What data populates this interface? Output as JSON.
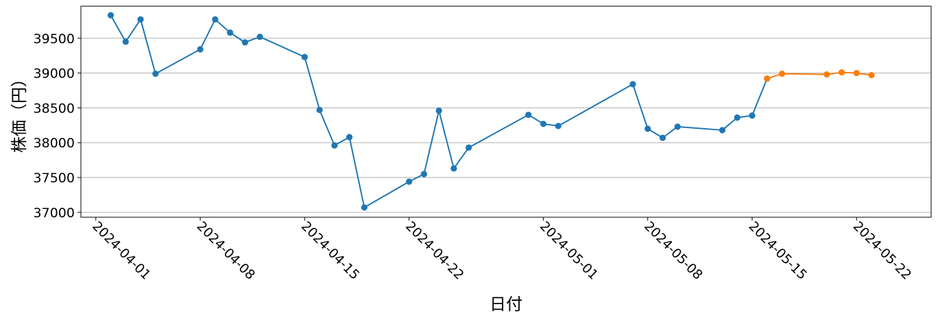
{
  "chart_data": {
    "type": "line",
    "xlabel": "日付",
    "ylabel": "株価（円）",
    "x_axis_type": "date",
    "xlim": [
      "2024-03-31",
      "2024-05-27"
    ],
    "ylim": [
      36930,
      39960
    ],
    "grid": "horizontal",
    "yticks": [
      37000,
      37500,
      38000,
      38500,
      39000,
      39500
    ],
    "xticks": [
      "2024-04-01",
      "2024-04-08",
      "2024-04-15",
      "2024-04-22",
      "2024-05-01",
      "2024-05-08",
      "2024-05-15",
      "2024-05-22"
    ],
    "series": [
      {
        "color": "#1f77b4",
        "points": [
          {
            "x": "2024-04-02",
            "y": 39830
          },
          {
            "x": "2024-04-03",
            "y": 39450
          },
          {
            "x": "2024-04-04",
            "y": 39770
          },
          {
            "x": "2024-04-05",
            "y": 38990
          },
          {
            "x": "2024-04-08",
            "y": 39340
          },
          {
            "x": "2024-04-09",
            "y": 39770
          },
          {
            "x": "2024-04-10",
            "y": 39580
          },
          {
            "x": "2024-04-11",
            "y": 39440
          },
          {
            "x": "2024-04-12",
            "y": 39520
          },
          {
            "x": "2024-04-15",
            "y": 39230
          },
          {
            "x": "2024-04-16",
            "y": 38470
          },
          {
            "x": "2024-04-17",
            "y": 37960
          },
          {
            "x": "2024-04-18",
            "y": 38080
          },
          {
            "x": "2024-04-19",
            "y": 37070
          },
          {
            "x": "2024-04-22",
            "y": 37440
          },
          {
            "x": "2024-04-23",
            "y": 37550
          },
          {
            "x": "2024-04-24",
            "y": 38460
          },
          {
            "x": "2024-04-25",
            "y": 37630
          },
          {
            "x": "2024-04-26",
            "y": 37930
          },
          {
            "x": "2024-04-30",
            "y": 38400
          },
          {
            "x": "2024-05-01",
            "y": 38270
          },
          {
            "x": "2024-05-02",
            "y": 38240
          },
          {
            "x": "2024-05-07",
            "y": 38840
          },
          {
            "x": "2024-05-08",
            "y": 38200
          },
          {
            "x": "2024-05-09",
            "y": 38070
          },
          {
            "x": "2024-05-10",
            "y": 38230
          },
          {
            "x": "2024-05-13",
            "y": 38180
          },
          {
            "x": "2024-05-14",
            "y": 38360
          },
          {
            "x": "2024-05-15",
            "y": 38390
          },
          {
            "x": "2024-05-16",
            "y": 38920
          }
        ]
      },
      {
        "color": "#ff7f0e",
        "points": [
          {
            "x": "2024-05-16",
            "y": 38920
          },
          {
            "x": "2024-05-17",
            "y": 38990
          },
          {
            "x": "2024-05-20",
            "y": 38980
          },
          {
            "x": "2024-05-21",
            "y": 39010
          },
          {
            "x": "2024-05-22",
            "y": 39000
          },
          {
            "x": "2024-05-23",
            "y": 38970
          }
        ]
      }
    ]
  }
}
